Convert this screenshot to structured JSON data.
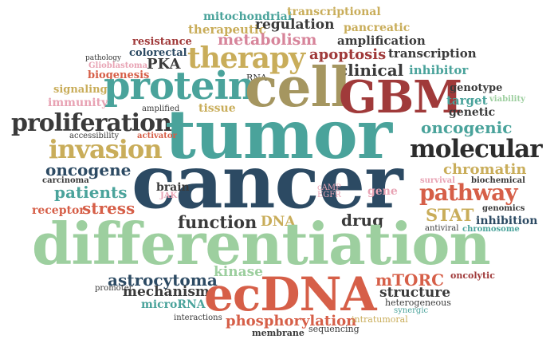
{
  "palette": {
    "teal": "#4aa39b",
    "green": "#9dcf9f",
    "navy": "#2c4a63",
    "tan": "#c9ad5a",
    "red": "#d65f48",
    "pink": "#d7849a",
    "darkgray": "#3a3a3a",
    "olive": "#a59660",
    "darkred": "#a03a3a",
    "lightpink": "#e8a3b4"
  },
  "words": {
    "mitochondrial": "mitochondrial",
    "transcriptional": "transcriptional",
    "therapeutic": "therapeutic",
    "regulation": "regulation",
    "pancreatic": "pancreatic",
    "resistance": "resistance",
    "metabolism": "metabolism",
    "amplification": "amplification",
    "colorectal": "colorectal",
    "pathology": "pathology",
    "therapy": "therapy",
    "apoptosis": "apoptosis",
    "transcription": "transcription",
    "PKA": "PKA",
    "glioblastoma": "Glioblastoma",
    "biogenesis": "biogenesis",
    "clinical": "clinical",
    "inhibitor": "inhibitor",
    "RNA": "RNA",
    "protein": "protein",
    "cell": "cell",
    "GBM": "GBM",
    "signaling": "signaling",
    "genotype": "genotype",
    "immunity": "immunity",
    "target": "target",
    "viability": "viability",
    "amplified": "amplified",
    "tissue": "tissue",
    "genetic": "genetic",
    "proliferation": "proliferation",
    "tumor": "tumor",
    "oncogenic": "oncogenic",
    "accessibility": "accessibility",
    "activator": "activator",
    "invasion": "invasion",
    "molecular": "molecular",
    "oncogene": "oncogene",
    "cancer": "cancer",
    "chromatin": "chromatin",
    "carcinoma": "carcinoma",
    "brain": "brain",
    "survival": "survival",
    "biochemical": "biochemical",
    "patients": "patients",
    "JAK": "JAK",
    "cAMP": "cAMP",
    "EGFR": "EGFR",
    "gene": "gene",
    "pathway": "pathway",
    "receptor": "receptor",
    "stress": "stress",
    "STAT": "STAT",
    "genomics": "genomics",
    "inhibition": "inhibition",
    "antiviral": "antiviral",
    "chromosome": "chromosome",
    "function": "function",
    "DNA": "DNA",
    "drug": "drug",
    "differentiation": "differentiation",
    "kinase": "kinase",
    "astrocytoma": "astrocytoma",
    "mTORC": "mTORC",
    "oncolytic": "oncolytic",
    "mechanism": "mechanism",
    "promoter": "promoter",
    "ecDNA": "ecDNA",
    "structure": "structure",
    "heterogeneous": "heterogeneous",
    "synergic": "synergic",
    "microRNA": "microRNA",
    "interactions": "interactions",
    "phosphorylation": "phosphorylation",
    "intratumoral": "intratumoral",
    "membrane": "membrane",
    "sequencing": "sequencing"
  }
}
